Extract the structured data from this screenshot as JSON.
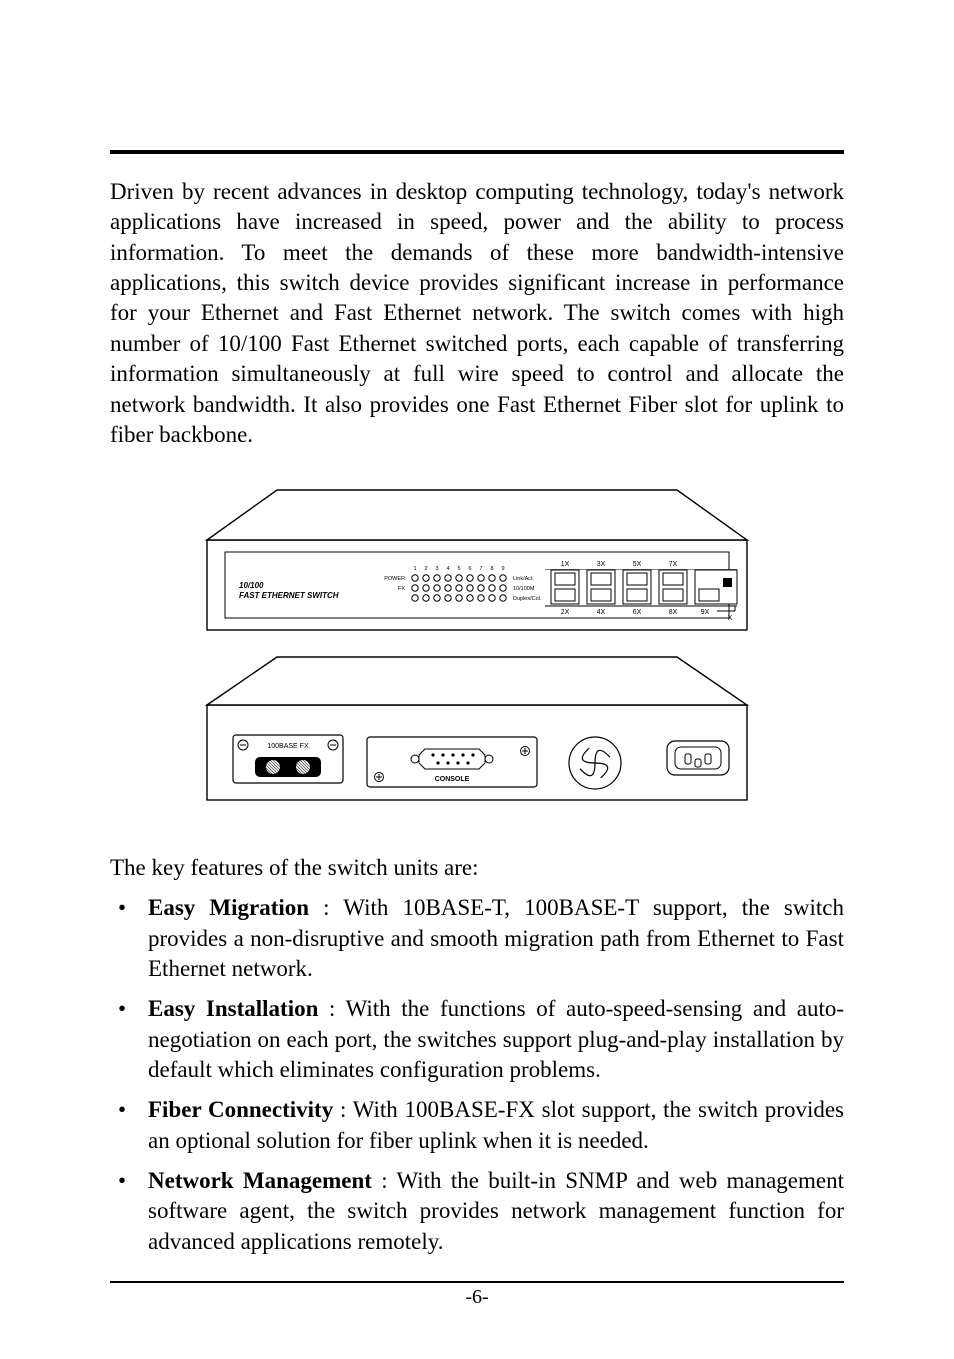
{
  "page": {
    "number_display": "-6-"
  },
  "intro": "Driven by recent advances in desktop computing technology, today's network applications have increased in speed, power and the ability to process information. To meet the demands of these more bandwidth-intensive applications, this switch device provides significant increase in performance for your Ethernet and Fast Ethernet network. The switch comes with high number of 10/100 Fast Ethernet switched ports, each capable of transferring information simultaneously at full wire speed to control and allocate the network bandwidth. It also provides one Fast Ethernet Fiber slot for uplink to fiber backbone.",
  "features_lead": "The key features of the switch units are:",
  "features": [
    {
      "title": "Easy Migration",
      "body": " : With 10BASE-T, 100BASE-T support, the switch provides a non-disruptive and smooth migration path  from Ethernet to Fast Ethernet network."
    },
    {
      "title": "Easy Installation",
      "body": " : With the functions of auto-speed-sensing and auto-negotiation on each port, the switches support plug-and-play installation by default which eliminates configuration problems."
    },
    {
      "title": "Fiber Connectivity",
      "body": " : With 100BASE-FX slot support, the switch provides an optional solution for fiber uplink when it is needed."
    },
    {
      "title": "Network Management",
      "body": " : With the built-in SNMP and web management software agent, the switch provides network management function for advanced applications remotely."
    }
  ],
  "diagram": {
    "front": {
      "device_label_line1": "10/100",
      "device_label_line2": "FAST ETHERNET SWITCH",
      "led_headers": [
        "1",
        "2",
        "3",
        "4",
        "5",
        "6",
        "7",
        "8",
        "9"
      ],
      "row_labels_left": [
        "POWER",
        "FX",
        ""
      ],
      "row_labels_right": [
        "Link/Act.",
        "10/100M",
        "Duplex/Col."
      ],
      "port_top_labels": [
        "1X",
        "3X",
        "5X",
        "7X"
      ],
      "port_bottom_labels": [
        "2X",
        "4X",
        "6X",
        "8X",
        "9X"
      ],
      "uplink_mark": "X"
    },
    "rear": {
      "module_label": "100BASE FX",
      "console_label": "CONSOLE"
    },
    "style": {
      "stroke": "#000000",
      "stroke_width": 1.4,
      "fill": "#ffffff",
      "text_color": "#000000",
      "small_font": 7,
      "tiny_font": 5.5,
      "label_font_italic": 8,
      "hatch_fill": "#555555"
    }
  }
}
